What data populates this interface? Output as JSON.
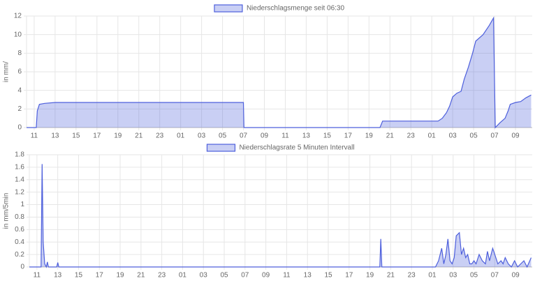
{
  "chart_data": [
    {
      "type": "area",
      "ylabel": "in mm/",
      "x": [
        10.27,
        11.2,
        11.3,
        11.5,
        12,
        13,
        31,
        31.05,
        44.05,
        44.3,
        49.6,
        50,
        50.4,
        50.7,
        51,
        51.4,
        51.8,
        52.1,
        52.5,
        52.9,
        53.2,
        53.9,
        54.5,
        54.9,
        55.07,
        55.5,
        56,
        56.3,
        56.5,
        57,
        57.5,
        58,
        58.5
      ],
      "series": [
        {
          "name": "Niederschlagsmenge seit 06:30",
          "color": "#4d5fdc",
          "values": [
            0,
            0,
            1.8,
            2.5,
            2.6,
            2.7,
            2.7,
            0,
            0,
            0.7,
            0.7,
            1.0,
            1.6,
            2.3,
            3.3,
            3.7,
            3.9,
            5.2,
            6.5,
            8,
            9.3,
            10,
            11,
            11.8,
            0,
            0.5,
            1.0,
            1.8,
            2.5,
            2.7,
            2.8,
            3.2,
            3.5
          ]
        }
      ],
      "xlim": [
        10.27,
        58.6
      ],
      "xticks": [
        11,
        13,
        15,
        17,
        19,
        21,
        23,
        {
          "value": 25,
          "label": "01"
        },
        {
          "value": 27,
          "label": "03"
        },
        {
          "value": 29,
          "label": "05"
        },
        {
          "value": 31,
          "label": "07"
        },
        {
          "value": 33,
          "label": "09"
        },
        {
          "value": 35,
          "label": "11"
        },
        {
          "value": 37,
          "label": "13"
        },
        {
          "value": 39,
          "label": "15"
        },
        {
          "value": 41,
          "label": "17"
        },
        {
          "value": 43,
          "label": "19"
        },
        {
          "value": 45,
          "label": "21"
        },
        {
          "value": 47,
          "label": "23"
        },
        {
          "value": 49,
          "label": "01"
        },
        {
          "value": 51,
          "label": "03"
        },
        {
          "value": 53,
          "label": "05"
        },
        {
          "value": 55,
          "label": "07"
        },
        {
          "value": 57,
          "label": "09"
        }
      ],
      "ylim": [
        0,
        12
      ],
      "yticks": [
        0,
        2,
        4,
        6,
        8,
        10,
        12
      ],
      "grid": true
    },
    {
      "type": "area",
      "ylabel": "in mm/5min",
      "x": [
        10.27,
        11.4,
        11.5,
        11.6,
        11.75,
        11.9,
        12.0,
        12.1,
        12.9,
        13.0,
        13.1,
        43.95,
        44.05,
        44.15,
        49.3,
        49.6,
        49.9,
        50.1,
        50.3,
        50.5,
        50.7,
        50.9,
        51.1,
        51.3,
        51.6,
        51.8,
        52.0,
        52.2,
        52.4,
        52.6,
        52.8,
        53.0,
        53.2,
        53.5,
        53.8,
        54.1,
        54.3,
        54.5,
        54.8,
        55.0,
        55.3,
        55.6,
        55.8,
        56.0,
        56.3,
        56.6,
        56.9,
        57.2,
        57.5,
        57.8,
        58.1,
        58.5
      ],
      "series": [
        {
          "name": "Niederschlagsrate 5 Minuten Intervall",
          "color": "#4d5fdc",
          "values": [
            0,
            0,
            1.65,
            0.4,
            0.05,
            0,
            0.08,
            0,
            0,
            0.07,
            0,
            0,
            0.45,
            0,
            0,
            0.1,
            0.3,
            0.05,
            0.2,
            0.45,
            0.1,
            0.05,
            0.15,
            0.5,
            0.55,
            0.2,
            0.3,
            0.15,
            0.2,
            0.05,
            0.05,
            0.1,
            0.05,
            0.2,
            0.1,
            0.05,
            0.25,
            0.1,
            0.3,
            0.2,
            0.05,
            0.1,
            0.05,
            0.15,
            0.05,
            0,
            0.1,
            0,
            0.05,
            0.1,
            0,
            0.15
          ]
        }
      ],
      "xlim": [
        10.27,
        58.6
      ],
      "xticks": [
        11,
        13,
        15,
        17,
        19,
        21,
        23,
        {
          "value": 25,
          "label": "01"
        },
        {
          "value": 27,
          "label": "03"
        },
        {
          "value": 29,
          "label": "05"
        },
        {
          "value": 31,
          "label": "07"
        },
        {
          "value": 33,
          "label": "09"
        },
        {
          "value": 35,
          "label": "11"
        },
        {
          "value": 37,
          "label": "13"
        },
        {
          "value": 39,
          "label": "15"
        },
        {
          "value": 41,
          "label": "17"
        },
        {
          "value": 43,
          "label": "19"
        },
        {
          "value": 45,
          "label": "21"
        },
        {
          "value": 47,
          "label": "23"
        },
        {
          "value": 49,
          "label": "01"
        },
        {
          "value": 51,
          "label": "03"
        },
        {
          "value": 53,
          "label": "05"
        },
        {
          "value": 55,
          "label": "07"
        },
        {
          "value": 57,
          "label": "09"
        }
      ],
      "ylim": [
        0,
        1.8
      ],
      "yticks": [
        0,
        0.2,
        0.4,
        0.6,
        0.8,
        1,
        1.2,
        1.4,
        1.6,
        1.8
      ],
      "grid": true
    }
  ]
}
